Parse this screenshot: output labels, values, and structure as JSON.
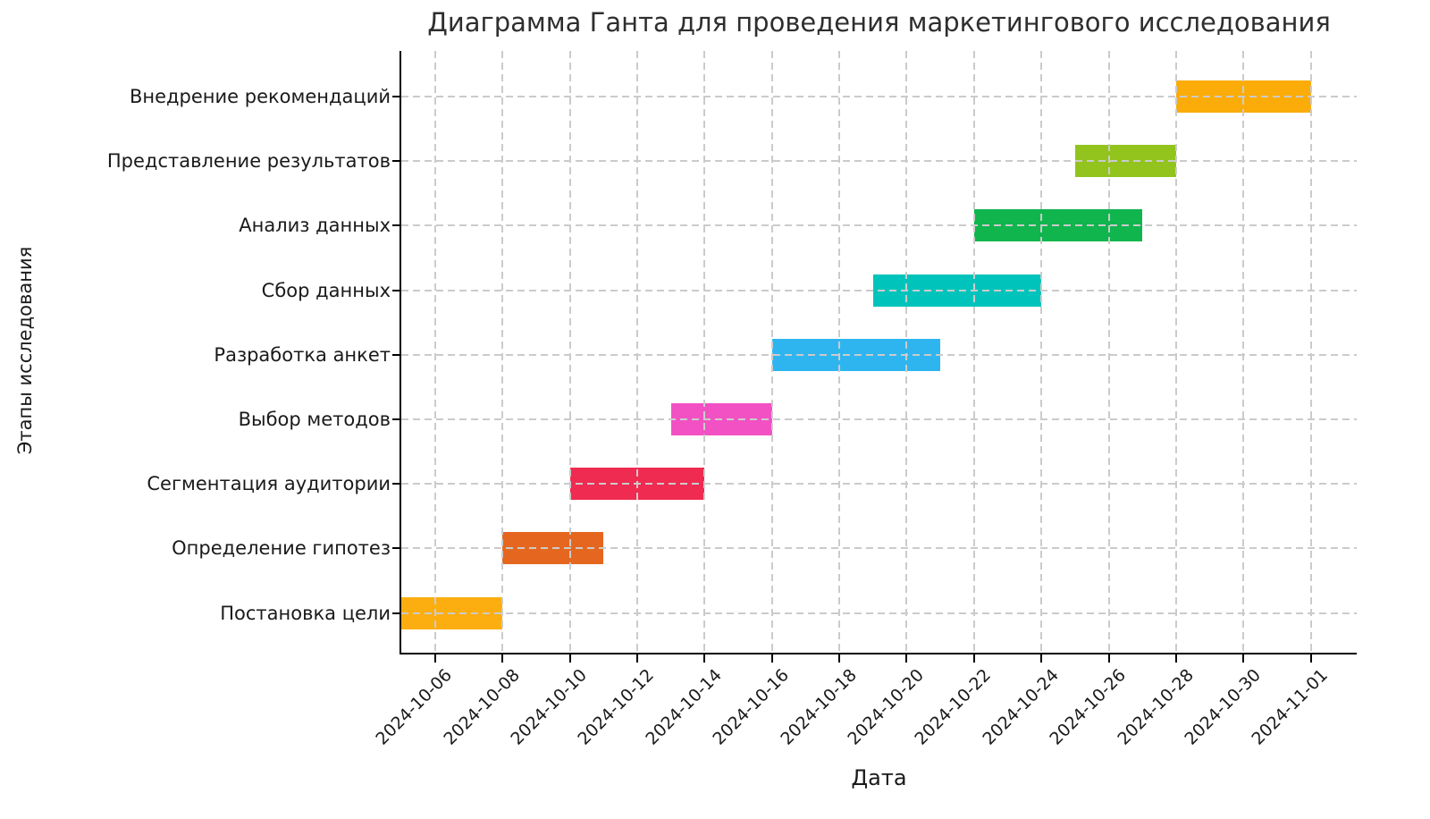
{
  "chart_data": {
    "type": "bar",
    "subtype": "gantt",
    "title": "Диаграмма Ганта для проведения маркетингового исследования",
    "xlabel": "Дата",
    "ylabel": "Этапы исследования",
    "x_start": "2024-10-05",
    "x_ticks": [
      "2024-10-06",
      "2024-10-08",
      "2024-10-10",
      "2024-10-12",
      "2024-10-14",
      "2024-10-16",
      "2024-10-18",
      "2024-10-20",
      "2024-10-22",
      "2024-10-24",
      "2024-10-26",
      "2024-10-28",
      "2024-10-30",
      "2024-11-01"
    ],
    "grid": "dashed gray, vertical and horizontal, drawn above bars",
    "legend": "none",
    "tasks": [
      {
        "label": "Внедрение рекомендаций",
        "start": "2024-10-28",
        "end": "2024-11-01",
        "color": "#FBAC08"
      },
      {
        "label": "Представление результатов",
        "start": "2024-10-25",
        "end": "2024-10-28",
        "color": "#92C41D"
      },
      {
        "label": "Анализ данных",
        "start": "2024-10-22",
        "end": "2024-10-27",
        "color": "#10B54D"
      },
      {
        "label": "Сбор данных",
        "start": "2024-10-19",
        "end": "2024-10-24",
        "color": "#00C4BB"
      },
      {
        "label": "Разработка анкет",
        "start": "2024-10-16",
        "end": "2024-10-21",
        "color": "#2EB5F0"
      },
      {
        "label": "Выбор методов",
        "start": "2024-10-13",
        "end": "2024-10-16",
        "color": "#F251C4"
      },
      {
        "label": "Сегментация аудитории",
        "start": "2024-10-10",
        "end": "2024-10-14",
        "color": "#EF2B51"
      },
      {
        "label": "Определение гипотез",
        "start": "2024-10-08",
        "end": "2024-10-11",
        "color": "#E5671F"
      },
      {
        "label": "Постановка цели",
        "start": "2024-10-05",
        "end": "2024-10-08",
        "color": "#FCAE10"
      }
    ]
  }
}
